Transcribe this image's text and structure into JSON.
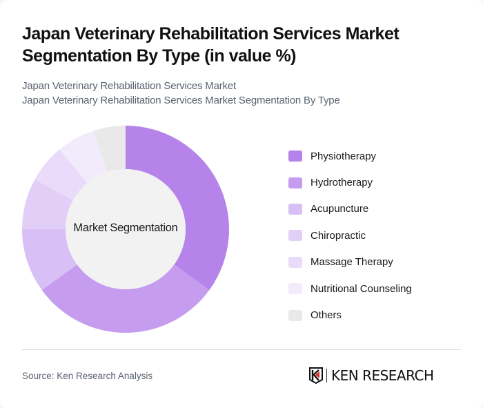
{
  "header": {
    "title": "Japan Veterinary Rehabilitation Services Market Segmentation By Type (in value %)",
    "subtitle_line1": "Japan Veterinary Rehabilitation Services Market",
    "subtitle_line2": "Japan Veterinary Rehabilitation Services Market Segmentation By Type"
  },
  "chart_center_label": "Market Segmentation",
  "legend": [
    {
      "label": "Physiotherapy",
      "color": "#b583ea"
    },
    {
      "label": "Hydrotherapy",
      "color": "#c59cee"
    },
    {
      "label": "Acupuncture",
      "color": "#d8c0f6"
    },
    {
      "label": "Chiropractic",
      "color": "#e2cff7"
    },
    {
      "label": "Massage Therapy",
      "color": "#e9dbf9"
    },
    {
      "label": "Nutritional Counseling",
      "color": "#f2ebfc"
    },
    {
      "label": "Others",
      "color": "#e9e9e9"
    }
  ],
  "chart_data": {
    "type": "pie",
    "subtype": "donut",
    "title": "Japan Veterinary Rehabilitation Services Market Segmentation By Type (in value %)",
    "center_label": "Market Segmentation",
    "categories": [
      "Physiotherapy",
      "Hydrotherapy",
      "Acupuncture",
      "Chiropractic",
      "Massage Therapy",
      "Nutritional Counseling",
      "Others"
    ],
    "values": [
      35,
      30,
      10,
      8,
      6,
      6,
      5
    ],
    "colors": [
      "#b583ea",
      "#c59cee",
      "#d8c0f6",
      "#e2cff7",
      "#e9dbf9",
      "#f2ebfc",
      "#e9e9e9"
    ],
    "legend_position": "right",
    "start_angle": "top, clockwise"
  },
  "footer": {
    "source": "Source: Ken Research Analysis",
    "logo_text": "KEN RESEARCH"
  }
}
